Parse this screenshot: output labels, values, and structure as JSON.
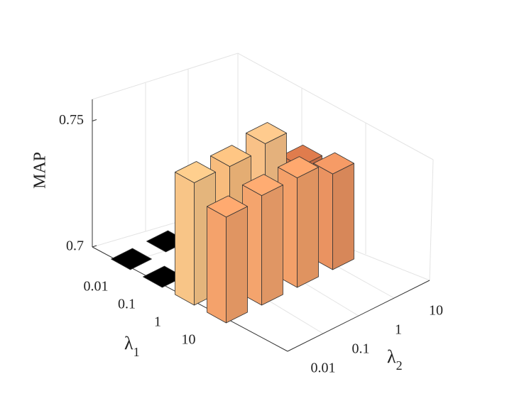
{
  "chart_data": {
    "type": "bar3d",
    "zlabel": "MAP",
    "xlabel": {
      "symbol": "λ",
      "subscript": "1"
    },
    "ylabel": {
      "symbol": "λ",
      "subscript": "2"
    },
    "x_categories": [
      "0.01",
      "0.1",
      "1",
      "10"
    ],
    "y_categories": [
      "0.01",
      "0.1",
      "1",
      "10"
    ],
    "values": [
      [
        0.7,
        0.7,
        0.7,
        0.7
      ],
      [
        0.7,
        0.7,
        0.7,
        0.7
      ],
      [
        0.7486,
        0.748,
        0.75,
        0.734
      ],
      [
        0.742,
        0.7435,
        0.7435,
        0.738
      ]
    ],
    "colors": [
      [
        "#000000",
        "#000000",
        "#000000",
        "#000000"
      ],
      [
        "#000000",
        "#000000",
        "#000000",
        "#000000"
      ],
      [
        "#fdc98a",
        "#fdc080",
        "#fdc58a",
        "#d9784b"
      ],
      [
        "#f9a56d",
        "#f9a76f",
        "#f8a36b",
        "#ef9663"
      ]
    ],
    "zlim": [
      0.7,
      0.76
    ],
    "zticks": [
      0.7,
      0.75
    ],
    "grid": true
  }
}
